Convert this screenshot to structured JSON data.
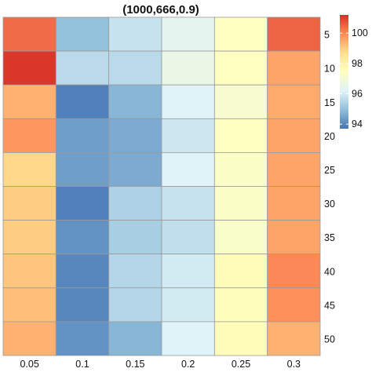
{
  "chart_data": {
    "type": "heatmap",
    "title": "(1000,666,0.9)",
    "x_categories": [
      "0.05",
      "0.1",
      "0.15",
      "0.2",
      "0.25",
      "0.3"
    ],
    "y_categories": [
      "5",
      "10",
      "15",
      "20",
      "25",
      "30",
      "35",
      "40",
      "45",
      "50"
    ],
    "values": [
      [
        100.4,
        95.0,
        95.8,
        96.4,
        97.4,
        100.5
      ],
      [
        101.1,
        95.6,
        95.6,
        96.6,
        97.4,
        99.6
      ],
      [
        99.4,
        93.9,
        94.8,
        96.2,
        97.1,
        99.5
      ],
      [
        99.8,
        94.4,
        94.6,
        95.9,
        97.4,
        99.6
      ],
      [
        98.8,
        94.4,
        94.6,
        96.2,
        97.3,
        99.6
      ],
      [
        99.0,
        93.9,
        95.4,
        95.8,
        97.3,
        99.6
      ],
      [
        99.0,
        94.2,
        95.3,
        95.7,
        97.2,
        99.6
      ],
      [
        99.1,
        94.0,
        95.5,
        96.0,
        97.6,
        100.0
      ],
      [
        99.2,
        94.0,
        95.5,
        96.0,
        97.5,
        99.9
      ],
      [
        99.4,
        94.2,
        94.8,
        96.2,
        97.6,
        99.4
      ]
    ],
    "color_scale": {
      "min": 93.7,
      "max": 101.2,
      "colors": [
        "#4575b4",
        "#91bfdb",
        "#e0f3f8",
        "#ffffbf",
        "#fee090",
        "#fc8d59",
        "#d73027"
      ],
      "ticks": [
        94,
        96,
        98,
        100
      ]
    },
    "legend": "right",
    "grid": true
  }
}
